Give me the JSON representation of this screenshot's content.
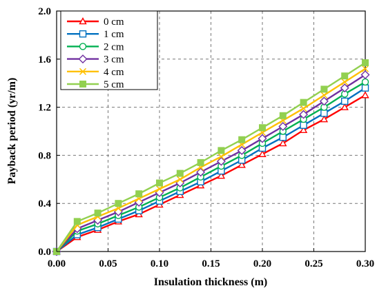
{
  "chart_data": {
    "type": "line",
    "title": "",
    "xlabel": "Insulation thickness (m)",
    "ylabel": "Payback period (yr/m)",
    "xlim": [
      0.0,
      0.3
    ],
    "ylim": [
      0.0,
      2.0
    ],
    "x_ticks": [
      "0.00",
      "0.05",
      "0.10",
      "0.15",
      "0.20",
      "0.25",
      "0.30"
    ],
    "y_ticks": [
      "0.0",
      "0.4",
      "0.8",
      "1.2",
      "1.6",
      "2.0"
    ],
    "grid": true,
    "legend_position": "top-left",
    "x": [
      0,
      0.02,
      0.04,
      0.06,
      0.08,
      0.1,
      0.12,
      0.14,
      0.16,
      0.18,
      0.2,
      0.22,
      0.24,
      0.26,
      0.28,
      0.3
    ],
    "series": [
      {
        "name": "0 cm",
        "color": "#ff0000",
        "marker": "triangle",
        "values": [
          0.0,
          0.12,
          0.18,
          0.25,
          0.31,
          0.39,
          0.47,
          0.55,
          0.63,
          0.72,
          0.81,
          0.9,
          1.01,
          1.1,
          1.2,
          1.3
        ]
      },
      {
        "name": "1 cm",
        "color": "#0070c0",
        "marker": "square",
        "values": [
          0.0,
          0.14,
          0.2,
          0.27,
          0.34,
          0.42,
          0.5,
          0.58,
          0.67,
          0.76,
          0.86,
          0.95,
          1.05,
          1.15,
          1.25,
          1.36
        ]
      },
      {
        "name": "2 cm",
        "color": "#00b050",
        "marker": "circle",
        "values": [
          0.0,
          0.17,
          0.23,
          0.3,
          0.37,
          0.45,
          0.53,
          0.62,
          0.71,
          0.8,
          0.9,
          1.0,
          1.1,
          1.2,
          1.31,
          1.41
        ]
      },
      {
        "name": "3 cm",
        "color": "#7030a0",
        "marker": "diamond",
        "values": [
          0.0,
          0.19,
          0.26,
          0.33,
          0.41,
          0.49,
          0.57,
          0.66,
          0.75,
          0.84,
          0.94,
          1.04,
          1.14,
          1.25,
          1.36,
          1.47
        ]
      },
      {
        "name": "4 cm",
        "color": "#ffc000",
        "marker": "x",
        "values": [
          0.0,
          0.22,
          0.29,
          0.36,
          0.44,
          0.52,
          0.6,
          0.7,
          0.79,
          0.89,
          0.99,
          1.09,
          1.19,
          1.3,
          1.41,
          1.52
        ]
      },
      {
        "name": "5 cm",
        "color": "#92d050",
        "marker": "filled-square",
        "values": [
          0.0,
          0.25,
          0.32,
          0.4,
          0.48,
          0.57,
          0.65,
          0.74,
          0.84,
          0.93,
          1.03,
          1.13,
          1.24,
          1.35,
          1.46,
          1.57
        ]
      }
    ]
  }
}
